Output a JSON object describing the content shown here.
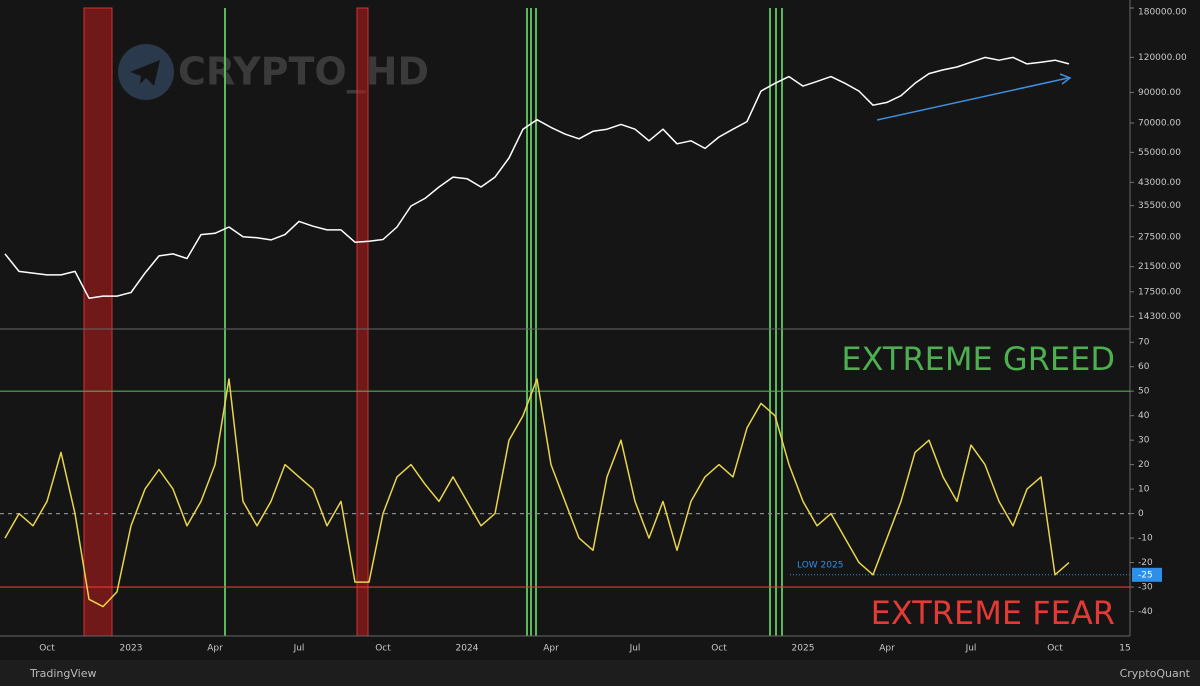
{
  "chart_data": {
    "type": "line",
    "categories": [
      null,
      null,
      null,
      "Oct",
      null,
      null,
      null,
      null,
      null,
      "2023",
      null,
      null,
      null,
      null,
      null,
      "Apr",
      null,
      null,
      null,
      null,
      null,
      "Jul",
      null,
      null,
      null,
      null,
      null,
      "Oct",
      null,
      null,
      null,
      null,
      null,
      "2024",
      null,
      null,
      null,
      null,
      null,
      "Apr",
      null,
      null,
      null,
      null,
      null,
      "Jul",
      null,
      null,
      null,
      null,
      null,
      "Oct",
      null,
      null,
      null,
      null,
      null,
      "2025",
      null,
      null,
      null,
      null,
      null,
      "Apr",
      null,
      null,
      null,
      null,
      null,
      "Jul",
      null,
      null,
      null,
      null,
      null,
      "Oct",
      null,
      null,
      null,
      null,
      "15"
    ],
    "watermark": "CRYPTO_HD",
    "footer_left": "TradingView",
    "footer_right": "CryptoQuant",
    "panels": [
      {
        "log_scale": true,
        "ylim": [
          13000,
          180000
        ],
        "yticks": [
          {
            "value": 14300,
            "label": "14300.00"
          },
          {
            "value": 17500,
            "label": "17500.00"
          },
          {
            "value": 21500,
            "label": "21500.00"
          },
          {
            "value": 27500,
            "label": "27500.00"
          },
          {
            "value": 35500,
            "label": "35500.00"
          },
          {
            "value": 43000,
            "label": "43000.00"
          },
          {
            "value": 55000,
            "label": "55000.00"
          },
          {
            "value": 70000,
            "label": "70000.00"
          },
          {
            "value": 90000,
            "label": "90000.00"
          },
          {
            "value": 120000,
            "label": "120000.00"
          },
          {
            "value": 180000,
            "label": "180000.00"
          }
        ],
        "series": [
          {
            "color": "#ffffff",
            "values": [
              23900,
              20700,
              20400,
              20100,
              20100,
              20700,
              16600,
              16900,
              16900,
              17400,
              20400,
              23500,
              23900,
              23000,
              28000,
              28300,
              29800,
              27500,
              27300,
              26800,
              28000,
              31200,
              30000,
              29100,
              29100,
              26300,
              26500,
              26900,
              29800,
              35400,
              37700,
              41400,
              44900,
              44300,
              41400,
              44900,
              52500,
              66500,
              71900,
              67500,
              63900,
              61500,
              65400,
              66500,
              69200,
              66500,
              60500,
              66500,
              59000,
              60500,
              56800,
              62400,
              66500,
              70800,
              91000,
              97000,
              102500,
              94800,
              98500,
              102500,
              97000,
              91000,
              81000,
              82900,
              87600,
              97000,
              105000,
              108300,
              110900,
              115300,
              120000,
              117200,
              120000,
              113700,
              115300,
              117200,
              113700,
              null,
              null,
              null,
              null
            ]
          }
        ]
      },
      {
        "log_scale": false,
        "ylim": [
          -50,
          75
        ],
        "yticks": [
          -40,
          -30,
          -20,
          -10,
          0,
          10,
          20,
          30,
          40,
          50,
          60,
          70
        ],
        "levels": [
          {
            "value": 50,
            "color": "#4caf50",
            "label": "EXTREME GREED"
          },
          {
            "value": -30,
            "color": "#e53935",
            "label": "EXTREME  FEAR"
          },
          {
            "value": 0,
            "color": "#8a8a8a",
            "dashed": true
          }
        ],
        "low": {
          "label": "LOW 2025",
          "value": -25,
          "color": "#2f8ee6"
        },
        "series": [
          {
            "color": "#e8d44d",
            "values": [
              -10,
              0,
              -5,
              5,
              25,
              0,
              -35,
              -38,
              -32,
              -5,
              10,
              18,
              10,
              -5,
              5,
              20,
              55,
              5,
              -5,
              5,
              20,
              15,
              10,
              -5,
              5,
              -28,
              -28,
              0,
              15,
              20,
              12,
              5,
              15,
              5,
              -5,
              0,
              30,
              40,
              55,
              20,
              5,
              -10,
              -15,
              15,
              30,
              5,
              -10,
              5,
              -15,
              5,
              15,
              20,
              15,
              35,
              45,
              40,
              20,
              5,
              -5,
              0,
              -10,
              -20,
              -25,
              -10,
              5,
              25,
              30,
              15,
              5,
              28,
              20,
              5,
              -5,
              10,
              15,
              -25,
              -20,
              null,
              null,
              null,
              null
            ]
          }
        ]
      }
    ]
  }
}
